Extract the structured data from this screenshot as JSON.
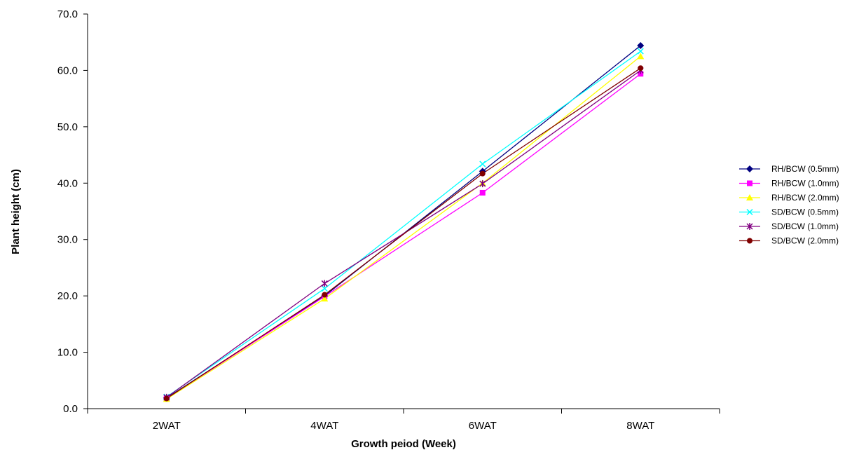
{
  "chart_data": {
    "type": "line",
    "title": "",
    "xlabel": "Growth peiod (Week)",
    "ylabel": "Plant height (cm)",
    "categories": [
      "2WAT",
      "4WAT",
      "6WAT",
      "8WAT"
    ],
    "ylim": [
      0,
      70
    ],
    "yticks": [
      "0.0",
      "10.0",
      "20.0",
      "30.0",
      "40.0",
      "50.0",
      "60.0",
      "70.0"
    ],
    "grid": false,
    "legend_position": "right",
    "series": [
      {
        "name": "RH/BCW (0.5mm)",
        "color": "#000080",
        "marker": "diamond",
        "values": [
          1.9,
          20.0,
          42.1,
          64.4
        ]
      },
      {
        "name": "RH/BCW (1.0mm)",
        "color": "#FF00FF",
        "marker": "square",
        "values": [
          1.8,
          19.9,
          38.3,
          59.4
        ]
      },
      {
        "name": "RH/BCW (2.0mm)",
        "color": "#FFFF00",
        "marker": "triangle",
        "values": [
          1.7,
          19.5,
          40.0,
          62.5
        ]
      },
      {
        "name": "SD/BCW (0.5mm)",
        "color": "#00FFFF",
        "marker": "x",
        "values": [
          2.1,
          21.3,
          43.4,
          63.4
        ]
      },
      {
        "name": "SD/BCW (1.0mm)",
        "color": "#800080",
        "marker": "star",
        "values": [
          2.0,
          22.2,
          39.9,
          60.0
        ]
      },
      {
        "name": "SD/BCW (2.0mm)",
        "color": "#800000",
        "marker": "circle",
        "values": [
          1.8,
          20.2,
          41.7,
          60.4
        ]
      }
    ]
  }
}
